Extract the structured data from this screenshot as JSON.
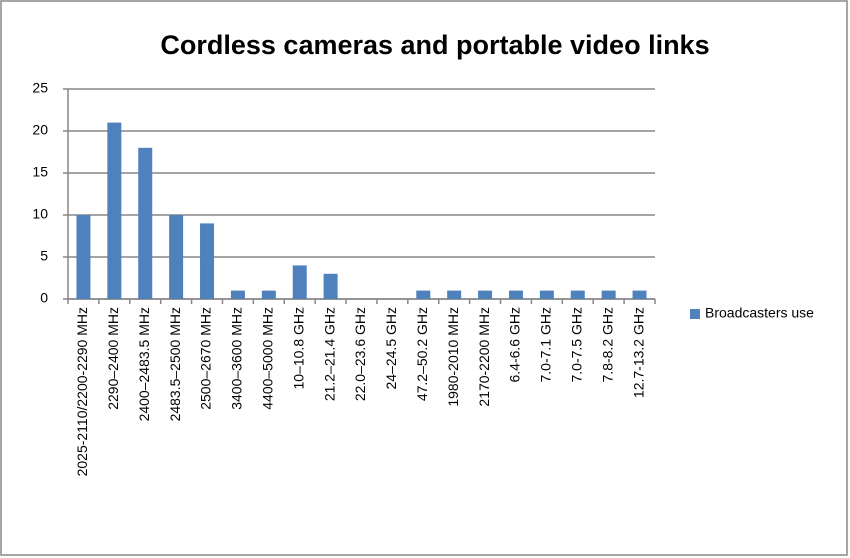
{
  "chart_data": {
    "type": "bar",
    "title": "Cordless cameras and portable video links",
    "categories": [
      "2025-2110/2200-2290 MHz",
      "2290–2400 MHz",
      "2400–2483.5 MHz",
      "2483.5–2500 MHz",
      "2500–2670 MHz",
      "3400–3600 MHz",
      "4400–5000 MHz",
      "10–10.8 GHz",
      "21.2–21.4 GHz",
      "22.0–23.6 GHz",
      "24–24.5 GHz",
      "47.2–50.2 GHz",
      "1980-2010 MHz",
      "2170-2200 MHz",
      "6.4-6.6 GHz",
      "7.0-7.1 GHz",
      "7.0-7.5 GHz",
      "7.8-8.2 GHz",
      "12.7-13.2 GHz"
    ],
    "series": [
      {
        "name": "Broadcasters use",
        "color": "#4f81bd",
        "values": [
          10,
          21,
          18,
          10,
          9,
          1,
          1,
          4,
          3,
          0,
          0,
          1,
          1,
          1,
          1,
          1,
          1,
          1,
          1
        ]
      }
    ],
    "ylim": [
      0,
      25
    ],
    "yticks": [
      0,
      5,
      10,
      15,
      20,
      25
    ],
    "grid": true,
    "legend": "right"
  }
}
